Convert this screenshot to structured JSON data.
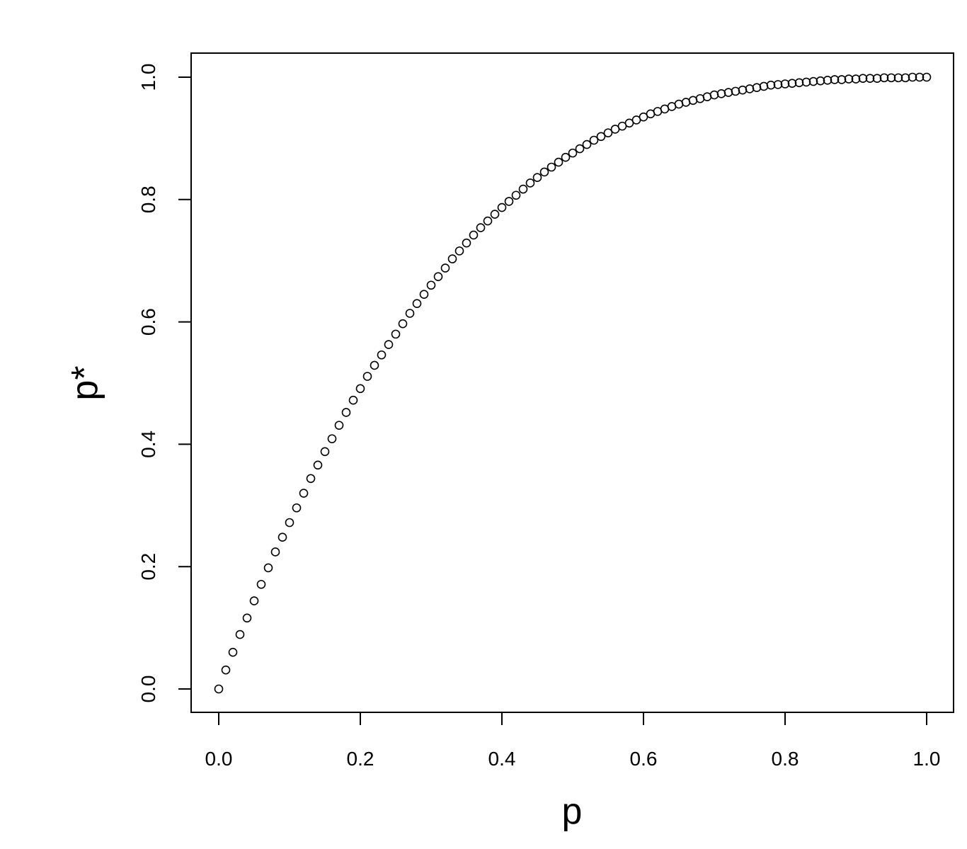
{
  "chart_data": {
    "type": "scatter",
    "xlabel": "p",
    "ylabel": "p*",
    "xlim": [
      0,
      1
    ],
    "ylim": [
      0,
      1
    ],
    "x_ticks": [
      "0.0",
      "0.2",
      "0.4",
      "0.6",
      "0.8",
      "1.0"
    ],
    "y_ticks": [
      "0.0",
      "0.2",
      "0.4",
      "0.6",
      "0.8",
      "1.0"
    ],
    "marker": "open-circle",
    "grid": false,
    "colors": {
      "points": "#000000",
      "axes": "#000000",
      "background": "#ffffff"
    },
    "points": [
      {
        "x": 0.0,
        "y": 0.0
      },
      {
        "x": 0.01,
        "y": 0.031
      },
      {
        "x": 0.02,
        "y": 0.06
      },
      {
        "x": 0.03,
        "y": 0.089
      },
      {
        "x": 0.04,
        "y": 0.116
      },
      {
        "x": 0.05,
        "y": 0.144
      },
      {
        "x": 0.06,
        "y": 0.171
      },
      {
        "x": 0.07,
        "y": 0.198
      },
      {
        "x": 0.08,
        "y": 0.224
      },
      {
        "x": 0.09,
        "y": 0.248
      },
      {
        "x": 0.1,
        "y": 0.272
      },
      {
        "x": 0.11,
        "y": 0.296
      },
      {
        "x": 0.12,
        "y": 0.32
      },
      {
        "x": 0.13,
        "y": 0.344
      },
      {
        "x": 0.14,
        "y": 0.366
      },
      {
        "x": 0.15,
        "y": 0.388
      },
      {
        "x": 0.16,
        "y": 0.409
      },
      {
        "x": 0.17,
        "y": 0.431
      },
      {
        "x": 0.18,
        "y": 0.452
      },
      {
        "x": 0.19,
        "y": 0.472
      },
      {
        "x": 0.2,
        "y": 0.491
      },
      {
        "x": 0.21,
        "y": 0.511
      },
      {
        "x": 0.22,
        "y": 0.529
      },
      {
        "x": 0.23,
        "y": 0.546
      },
      {
        "x": 0.24,
        "y": 0.563
      },
      {
        "x": 0.25,
        "y": 0.58
      },
      {
        "x": 0.26,
        "y": 0.597
      },
      {
        "x": 0.27,
        "y": 0.614
      },
      {
        "x": 0.28,
        "y": 0.63
      },
      {
        "x": 0.29,
        "y": 0.645
      },
      {
        "x": 0.3,
        "y": 0.66
      },
      {
        "x": 0.31,
        "y": 0.674
      },
      {
        "x": 0.32,
        "y": 0.688
      },
      {
        "x": 0.33,
        "y": 0.703
      },
      {
        "x": 0.34,
        "y": 0.716
      },
      {
        "x": 0.35,
        "y": 0.729
      },
      {
        "x": 0.36,
        "y": 0.742
      },
      {
        "x": 0.37,
        "y": 0.754
      },
      {
        "x": 0.38,
        "y": 0.765
      },
      {
        "x": 0.39,
        "y": 0.776
      },
      {
        "x": 0.4,
        "y": 0.787
      },
      {
        "x": 0.41,
        "y": 0.797
      },
      {
        "x": 0.42,
        "y": 0.807
      },
      {
        "x": 0.43,
        "y": 0.817
      },
      {
        "x": 0.44,
        "y": 0.827
      },
      {
        "x": 0.45,
        "y": 0.836
      },
      {
        "x": 0.46,
        "y": 0.845
      },
      {
        "x": 0.47,
        "y": 0.853
      },
      {
        "x": 0.48,
        "y": 0.861
      },
      {
        "x": 0.49,
        "y": 0.869
      },
      {
        "x": 0.5,
        "y": 0.876
      },
      {
        "x": 0.51,
        "y": 0.883
      },
      {
        "x": 0.52,
        "y": 0.89
      },
      {
        "x": 0.53,
        "y": 0.897
      },
      {
        "x": 0.54,
        "y": 0.903
      },
      {
        "x": 0.55,
        "y": 0.909
      },
      {
        "x": 0.56,
        "y": 0.915
      },
      {
        "x": 0.57,
        "y": 0.92
      },
      {
        "x": 0.58,
        "y": 0.925
      },
      {
        "x": 0.59,
        "y": 0.93
      },
      {
        "x": 0.6,
        "y": 0.935
      },
      {
        "x": 0.61,
        "y": 0.94
      },
      {
        "x": 0.62,
        "y": 0.944
      },
      {
        "x": 0.63,
        "y": 0.948
      },
      {
        "x": 0.64,
        "y": 0.952
      },
      {
        "x": 0.65,
        "y": 0.956
      },
      {
        "x": 0.66,
        "y": 0.959
      },
      {
        "x": 0.67,
        "y": 0.962
      },
      {
        "x": 0.68,
        "y": 0.965
      },
      {
        "x": 0.69,
        "y": 0.968
      },
      {
        "x": 0.7,
        "y": 0.971
      },
      {
        "x": 0.71,
        "y": 0.973
      },
      {
        "x": 0.72,
        "y": 0.975
      },
      {
        "x": 0.73,
        "y": 0.977
      },
      {
        "x": 0.74,
        "y": 0.979
      },
      {
        "x": 0.75,
        "y": 0.981
      },
      {
        "x": 0.76,
        "y": 0.983
      },
      {
        "x": 0.77,
        "y": 0.985
      },
      {
        "x": 0.78,
        "y": 0.987
      },
      {
        "x": 0.79,
        "y": 0.988
      },
      {
        "x": 0.8,
        "y": 0.989
      },
      {
        "x": 0.81,
        "y": 0.99
      },
      {
        "x": 0.82,
        "y": 0.991
      },
      {
        "x": 0.83,
        "y": 0.992
      },
      {
        "x": 0.84,
        "y": 0.993
      },
      {
        "x": 0.85,
        "y": 0.994
      },
      {
        "x": 0.86,
        "y": 0.995
      },
      {
        "x": 0.87,
        "y": 0.996
      },
      {
        "x": 0.88,
        "y": 0.996
      },
      {
        "x": 0.89,
        "y": 0.997
      },
      {
        "x": 0.9,
        "y": 0.997
      },
      {
        "x": 0.91,
        "y": 0.998
      },
      {
        "x": 0.92,
        "y": 0.998
      },
      {
        "x": 0.93,
        "y": 0.998
      },
      {
        "x": 0.94,
        "y": 0.999
      },
      {
        "x": 0.95,
        "y": 0.999
      },
      {
        "x": 0.96,
        "y": 0.999
      },
      {
        "x": 0.97,
        "y": 0.999
      },
      {
        "x": 0.98,
        "y": 1.0
      },
      {
        "x": 0.99,
        "y": 1.0
      },
      {
        "x": 1.0,
        "y": 1.0
      }
    ]
  }
}
